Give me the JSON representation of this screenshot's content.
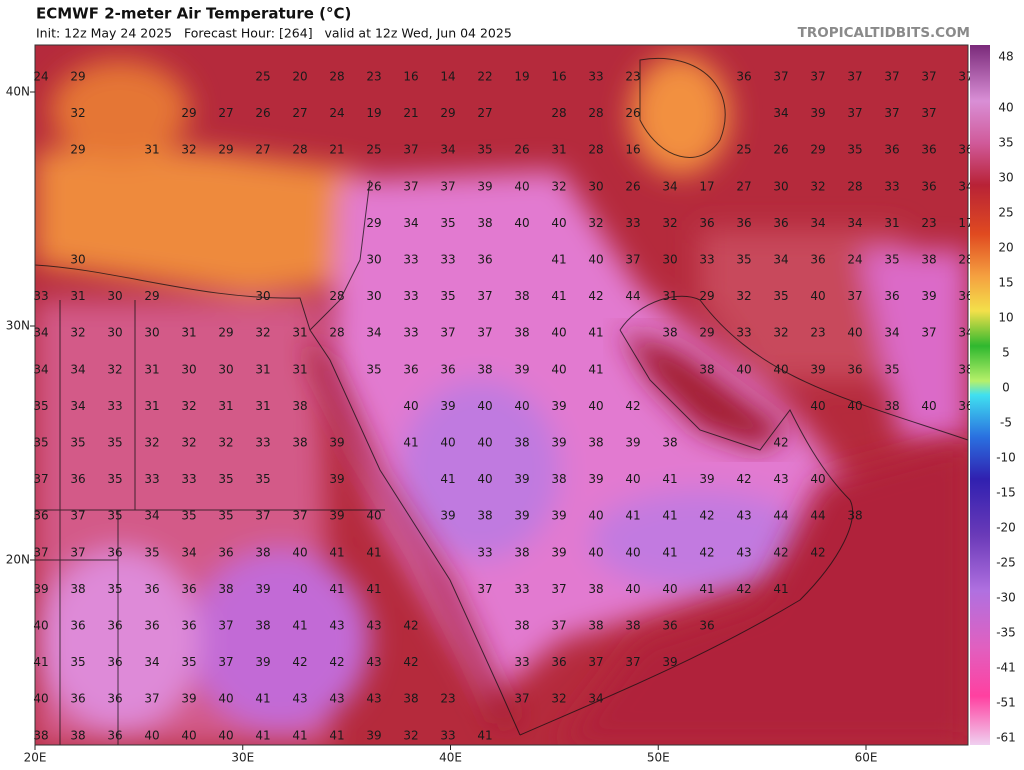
{
  "header": {
    "title": "ECMWF 2-meter Air Temperature (°C)",
    "subtitle": "Init: 12z May 24 2025   Forecast Hour: [264]   valid at 12z Wed, Jun 04 2025",
    "site": "TROPICALTIDBITS.COM"
  },
  "map": {
    "lat_labels": [
      "40N",
      "30N",
      "20N"
    ],
    "lon_labels": [
      "20E",
      "30E",
      "40E",
      "50E",
      "60E"
    ],
    "temperature_rows": [
      [
        24,
        29,
        null,
        null,
        null,
        null,
        25,
        20,
        28,
        23,
        16,
        14,
        22,
        19,
        16,
        33,
        23,
        null,
        null,
        36,
        37,
        37,
        37,
        37,
        37,
        37
      ],
      [
        null,
        32,
        null,
        null,
        29,
        27,
        26,
        27,
        24,
        19,
        21,
        29,
        27,
        null,
        28,
        28,
        26,
        null,
        null,
        null,
        34,
        39,
        37,
        37,
        37
      ],
      [
        null,
        29,
        null,
        31,
        32,
        29,
        27,
        28,
        21,
        25,
        37,
        34,
        35,
        26,
        31,
        28,
        16,
        null,
        null,
        25,
        26,
        29,
        35,
        36,
        36,
        36
      ],
      [
        null,
        null,
        null,
        null,
        null,
        null,
        null,
        null,
        null,
        26,
        37,
        37,
        39,
        40,
        32,
        30,
        26,
        34,
        17,
        27,
        30,
        32,
        28,
        33,
        36,
        34
      ],
      [
        null,
        null,
        null,
        null,
        null,
        null,
        null,
        null,
        null,
        29,
        34,
        35,
        38,
        40,
        40,
        32,
        33,
        32,
        36,
        36,
        36,
        34,
        34,
        31,
        23,
        17
      ],
      [
        null,
        30,
        null,
        null,
        null,
        null,
        null,
        null,
        null,
        30,
        33,
        33,
        36,
        null,
        41,
        40,
        37,
        30,
        33,
        35,
        34,
        36,
        24,
        35,
        38,
        28
      ],
      [
        33,
        31,
        30,
        29,
        null,
        null,
        30,
        null,
        28,
        30,
        33,
        35,
        37,
        38,
        41,
        42,
        44,
        31,
        29,
        32,
        35,
        40,
        37,
        36,
        39,
        36
      ],
      [
        34,
        32,
        30,
        30,
        31,
        29,
        32,
        31,
        28,
        34,
        33,
        37,
        37,
        38,
        40,
        41,
        null,
        38,
        29,
        33,
        32,
        23,
        40,
        34,
        37,
        34
      ],
      [
        34,
        34,
        32,
        31,
        30,
        30,
        31,
        31,
        null,
        35,
        36,
        36,
        38,
        39,
        40,
        41,
        null,
        null,
        38,
        40,
        40,
        39,
        36,
        35,
        null,
        38
      ],
      [
        35,
        34,
        33,
        31,
        32,
        31,
        31,
        38,
        null,
        null,
        40,
        39,
        40,
        40,
        39,
        40,
        42,
        null,
        null,
        null,
        null,
        40,
        40,
        38,
        40,
        36
      ],
      [
        35,
        35,
        35,
        32,
        32,
        32,
        33,
        38,
        39,
        null,
        41,
        40,
        40,
        38,
        39,
        38,
        39,
        38,
        null,
        null,
        42
      ],
      [
        37,
        36,
        35,
        33,
        33,
        35,
        35,
        null,
        39,
        null,
        null,
        41,
        40,
        39,
        38,
        39,
        40,
        41,
        39,
        42,
        43,
        40
      ],
      [
        36,
        37,
        35,
        34,
        35,
        35,
        37,
        37,
        39,
        40,
        null,
        39,
        38,
        39,
        39,
        40,
        41,
        41,
        42,
        43,
        44,
        44,
        38
      ],
      [
        37,
        37,
        36,
        35,
        34,
        36,
        38,
        40,
        41,
        41,
        null,
        null,
        33,
        38,
        39,
        40,
        40,
        41,
        42,
        43,
        42,
        42
      ],
      [
        39,
        38,
        35,
        36,
        36,
        38,
        39,
        40,
        41,
        41,
        null,
        null,
        37,
        33,
        37,
        38,
        40,
        40,
        41,
        42,
        41
      ],
      [
        40,
        36,
        36,
        36,
        36,
        37,
        38,
        41,
        43,
        43,
        42,
        null,
        null,
        38,
        37,
        38,
        38,
        36,
        36
      ],
      [
        41,
        35,
        36,
        34,
        35,
        37,
        39,
        42,
        42,
        43,
        42,
        null,
        null,
        33,
        36,
        37,
        37,
        39
      ],
      [
        40,
        36,
        36,
        37,
        39,
        40,
        41,
        43,
        43,
        43,
        38,
        23,
        null,
        37,
        32,
        34
      ],
      [
        38,
        38,
        36,
        40,
        40,
        40,
        41,
        41,
        41,
        39,
        32,
        33,
        41
      ]
    ]
  },
  "colorbar": {
    "labels": [
      48,
      40,
      35,
      30,
      25,
      20,
      15,
      10,
      5,
      0,
      -5,
      -10,
      -15,
      -20,
      -25,
      -30,
      -35,
      -41,
      -51,
      -61
    ]
  }
}
